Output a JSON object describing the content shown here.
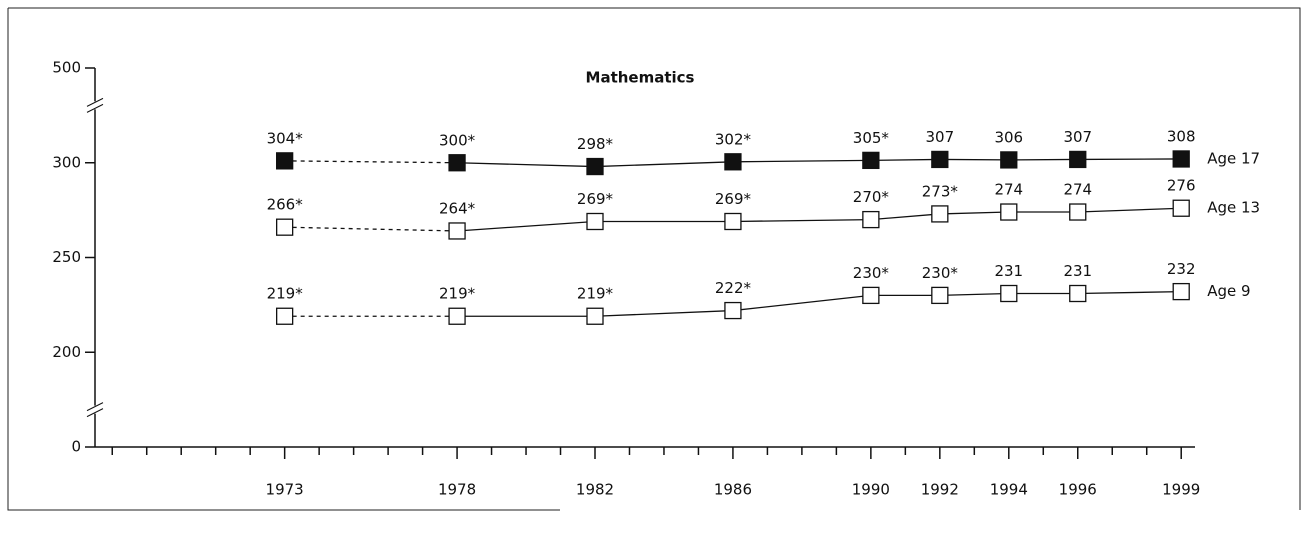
{
  "chart_data": {
    "type": "line",
    "title": "Mathematics",
    "x": [
      1973,
      1978,
      1982,
      1986,
      1990,
      1992,
      1994,
      1996,
      1999
    ],
    "series": [
      {
        "name": "Age 17",
        "color": "#111111",
        "values": [
          304,
          300,
          298,
          302,
          305,
          307,
          306,
          307,
          308
        ],
        "value_labels": [
          "304*",
          "300*",
          "298*",
          "302*",
          "305*",
          "307",
          "306",
          "307",
          "308"
        ]
      },
      {
        "name": "Age 13",
        "color": "#ffffff",
        "values": [
          266,
          264,
          269,
          269,
          270,
          273,
          274,
          274,
          276
        ],
        "value_labels": [
          "266*",
          "264*",
          "269*",
          "269*",
          "270*",
          "273*",
          "274",
          "274",
          "276"
        ]
      },
      {
        "name": "Age 9",
        "color": "#ffffff",
        "values": [
          219,
          219,
          219,
          222,
          230,
          230,
          231,
          231,
          232
        ],
        "value_labels": [
          "219*",
          "219*",
          "219*",
          "222*",
          "230*",
          "230*",
          "231",
          "231",
          "232"
        ]
      }
    ],
    "xlim": [
      1967.5,
      1999.4
    ],
    "xticks": [
      1973,
      1978,
      1982,
      1986,
      1990,
      1992,
      1994,
      1996,
      1999
    ],
    "x_minor_step": 1,
    "ylim": [
      0,
      500
    ],
    "yticks": [
      0,
      200,
      250,
      300,
      500
    ],
    "y_breaks": [
      [
        0,
        200
      ],
      [
        300,
        500
      ]
    ],
    "dashed_until": 1978
  }
}
